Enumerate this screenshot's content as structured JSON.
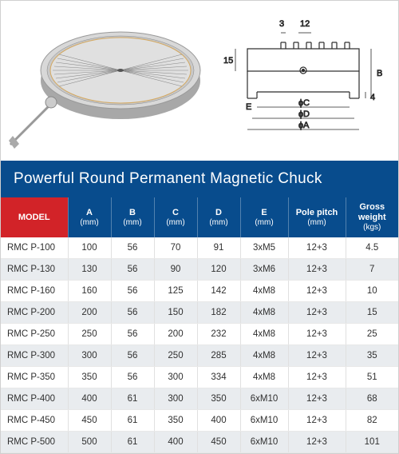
{
  "title": "Powerful Round Permanent Magnetic Chuck",
  "diagram_labels": {
    "d3": "3",
    "d12": "12",
    "dB": "B",
    "d4": "4",
    "dE": "E",
    "d15": "15",
    "dC": "ɸC",
    "dD": "ɸD",
    "dA": "ɸA"
  },
  "headers": {
    "model": "MODEL",
    "a": "A",
    "a_u": "(mm)",
    "b": "B",
    "b_u": "(mm)",
    "c": "C",
    "c_u": "(mm)",
    "d": "D",
    "d_u": "(mm)",
    "e": "E",
    "e_u": "(mm)",
    "pp": "Pole pitch",
    "pp_u": "(mm)",
    "gw": "Gross weight",
    "gw_u": "(kgs)"
  },
  "header_colors": {
    "model": "#d22328",
    "other": "#084c8d"
  },
  "rows": [
    {
      "model": "RMC P-100",
      "a": "100",
      "b": "56",
      "c": "70",
      "d": "91",
      "e": "3xM5",
      "pp": "12+3",
      "gw": "4.5"
    },
    {
      "model": "RMC P-130",
      "a": "130",
      "b": "56",
      "c": "90",
      "d": "120",
      "e": "3xM6",
      "pp": "12+3",
      "gw": "7"
    },
    {
      "model": "RMC P-160",
      "a": "160",
      "b": "56",
      "c": "125",
      "d": "142",
      "e": "4xM8",
      "pp": "12+3",
      "gw": "10"
    },
    {
      "model": "RMC P-200",
      "a": "200",
      "b": "56",
      "c": "150",
      "d": "182",
      "e": "4xM8",
      "pp": "12+3",
      "gw": "15"
    },
    {
      "model": "RMC P-250",
      "a": "250",
      "b": "56",
      "c": "200",
      "d": "232",
      "e": "4xM8",
      "pp": "12+3",
      "gw": "25"
    },
    {
      "model": "RMC P-300",
      "a": "300",
      "b": "56",
      "c": "250",
      "d": "285",
      "e": "4xM8",
      "pp": "12+3",
      "gw": "35"
    },
    {
      "model": "RMC P-350",
      "a": "350",
      "b": "56",
      "c": "300",
      "d": "334",
      "e": "4xM8",
      "pp": "12+3",
      "gw": "51"
    },
    {
      "model": "RMC P-400",
      "a": "400",
      "b": "61",
      "c": "300",
      "d": "350",
      "e": "6xM10",
      "pp": "12+3",
      "gw": "68"
    },
    {
      "model": "RMC P-450",
      "a": "450",
      "b": "61",
      "c": "350",
      "d": "400",
      "e": "6xM10",
      "pp": "12+3",
      "gw": "82"
    },
    {
      "model": "RMC P-500",
      "a": "500",
      "b": "61",
      "c": "400",
      "d": "450",
      "e": "6xM10",
      "pp": "12+3",
      "gw": "101"
    }
  ]
}
